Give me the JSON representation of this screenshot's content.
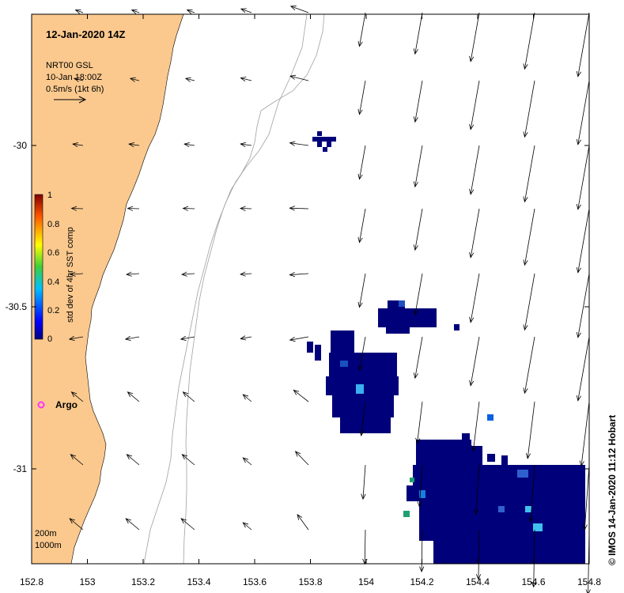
{
  "title": "12-Jan-2020 14Z",
  "current_legend": {
    "line1": "NRT00 GSL",
    "line2": "10-Jan 18:00Z",
    "line3": "0.5m/s (1kt 6h)"
  },
  "colorbar": {
    "label": "std dev of 4hr SST comp",
    "ticks": [
      "1",
      "0.8",
      "0.6",
      "0.4",
      "0.2",
      "0"
    ],
    "min": 0,
    "max": 1
  },
  "argo_label": "Argo",
  "depth_contours": [
    "200m",
    "1000m"
  ],
  "credit": "© IMOS 14-Jan-2020 11:12 Hobart",
  "axes": {
    "lon_ticks": [
      "152.8",
      "153",
      "153.2",
      "153.4",
      "153.6",
      "153.8",
      "154",
      "154.2",
      "154.4",
      "154.6",
      "154.8"
    ],
    "lat_ticks": [
      "-30",
      "-30.5",
      "-31"
    ]
  },
  "colors": {
    "land": "#fbc98e",
    "sst_patch": "#00007a",
    "argo_marker": "#ff33ff",
    "contour": "#a0a0a0"
  }
}
